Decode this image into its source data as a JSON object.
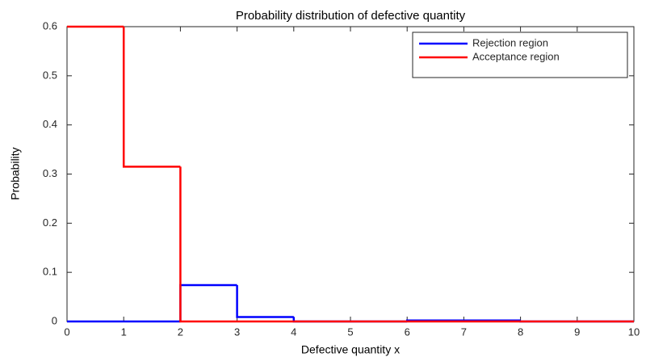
{
  "chart_data": {
    "type": "stairs",
    "title": "Probability distribution of defective quantity",
    "x_label": "Defective quantity x",
    "y_label": "Probability",
    "x": [
      0,
      1,
      2,
      3,
      4,
      5,
      6,
      7,
      8,
      9,
      10
    ],
    "series": [
      {
        "name": "Rejection region",
        "color": "#0000ff",
        "values": [
          0,
          0,
          0.074,
          0.009,
          0,
          0,
          0.002,
          0.002,
          0,
          0,
          0
        ]
      },
      {
        "name": "Acceptance region",
        "color": "#ff0000",
        "values": [
          0.6,
          0.315,
          0,
          0,
          0,
          0,
          0,
          0,
          0,
          0,
          0
        ]
      }
    ],
    "xlim": [
      0,
      10
    ],
    "ylim": [
      0,
      0.6
    ],
    "xticks": [
      0,
      1,
      2,
      3,
      4,
      5,
      6,
      7,
      8,
      9,
      10
    ],
    "yticks": [
      0,
      0.1,
      0.2,
      0.3,
      0.4,
      0.5,
      0.6
    ],
    "legend": "upper right",
    "grid": false
  }
}
